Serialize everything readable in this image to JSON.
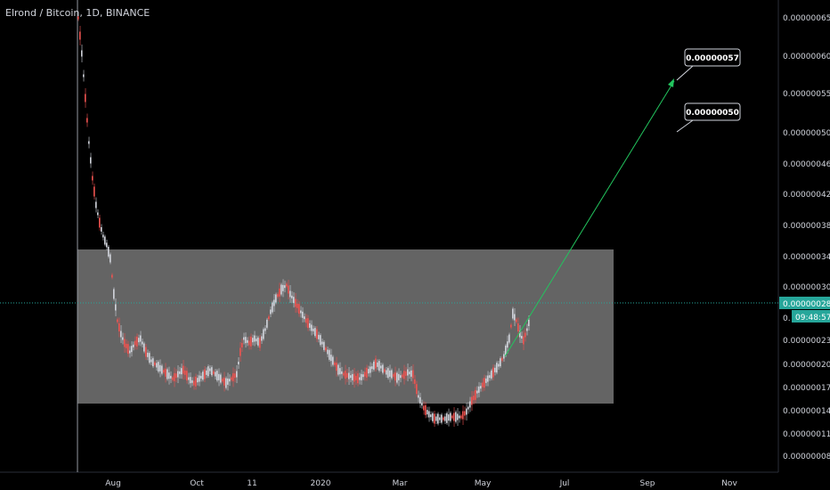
{
  "chart_data": {
    "type": "candlestick",
    "title": "Elrond / Bitcoin, 1D, BINANCE",
    "y_ticks": [
      "0.00000065",
      "0.00000060",
      "0.00000055",
      "0.00000050",
      "0.00000046",
      "0.00000042",
      "0.00000038",
      "0.00000034",
      "0.00000030",
      "0.00000023",
      "0.00000020",
      "0.00000017",
      "0.00000014",
      "0.00000011",
      "0.00000008"
    ],
    "x_ticks": [
      "Aug",
      "Oct",
      "11",
      "2020",
      "Mar",
      "May",
      "Jul",
      "Sep",
      "Nov"
    ],
    "last_price": "0.00000028",
    "countdown": "09:48:57",
    "countdown_prefix": "0.",
    "range_box": {
      "top": 3.5e-07,
      "bottom": 1.55e-07
    },
    "annotations": [
      {
        "text": "0.00000057"
      },
      {
        "text": "0.00000050"
      }
    ],
    "colors": {
      "up": "#d1d4dc",
      "down": "#ef5350",
      "box": "#808080",
      "price_tag": "#26a69a",
      "arrow": "#22c55e"
    }
  }
}
